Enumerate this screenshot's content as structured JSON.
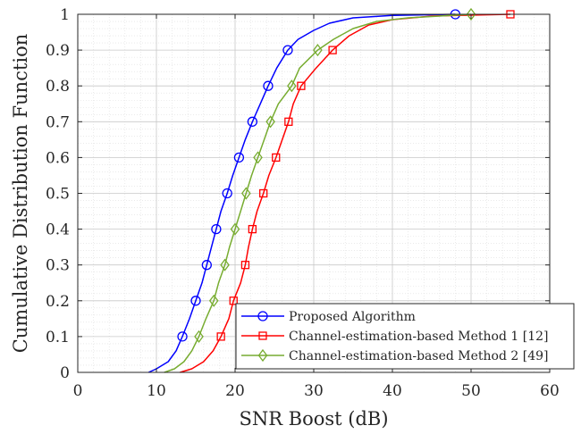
{
  "chart_data": {
    "type": "line",
    "title": "",
    "xlabel": "SNR Boost (dB)",
    "ylabel": "Cumulative Distribution Function",
    "xlim": [
      0,
      60
    ],
    "ylim": [
      0,
      1
    ],
    "xticks": [
      0,
      10,
      20,
      30,
      40,
      50,
      60
    ],
    "yticks": [
      0,
      0.1,
      0.2,
      0.3,
      0.4,
      0.5,
      0.6,
      0.7,
      0.8,
      0.9,
      1
    ],
    "xtick_labels": [
      "0",
      "10",
      "20",
      "30",
      "40",
      "50",
      "60"
    ],
    "ytick_labels": [
      "0",
      "0.1",
      "0.2",
      "0.3",
      "0.4",
      "0.5",
      "0.6",
      "0.7",
      "0.8",
      "0.9",
      "1"
    ],
    "grid": true,
    "minor_grid": true,
    "legend_position": "bottom-right",
    "series": [
      {
        "name": "Proposed Algorithm",
        "color": "#0000ff",
        "marker": "circle",
        "points": [
          [
            9,
            0
          ],
          [
            10,
            0.01
          ],
          [
            11.5,
            0.03
          ],
          [
            12.5,
            0.06
          ],
          [
            13.3,
            0.1
          ],
          [
            14.2,
            0.15
          ],
          [
            15,
            0.2
          ],
          [
            15.8,
            0.25
          ],
          [
            16.4,
            0.3
          ],
          [
            17,
            0.35
          ],
          [
            17.6,
            0.4
          ],
          [
            18.2,
            0.45
          ],
          [
            19,
            0.5
          ],
          [
            19.7,
            0.55
          ],
          [
            20.5,
            0.6
          ],
          [
            21.3,
            0.65
          ],
          [
            22.2,
            0.7
          ],
          [
            23.2,
            0.75
          ],
          [
            24.2,
            0.8
          ],
          [
            25.3,
            0.85
          ],
          [
            26.7,
            0.9
          ],
          [
            28,
            0.93
          ],
          [
            30,
            0.955
          ],
          [
            32,
            0.975
          ],
          [
            35,
            0.99
          ],
          [
            40,
            0.997
          ],
          [
            48,
            1
          ]
        ],
        "marker_points": [
          [
            13.3,
            0.1
          ],
          [
            15,
            0.2
          ],
          [
            16.4,
            0.3
          ],
          [
            17.6,
            0.4
          ],
          [
            19,
            0.5
          ],
          [
            20.5,
            0.6
          ],
          [
            22.2,
            0.7
          ],
          [
            24.2,
            0.8
          ],
          [
            26.7,
            0.9
          ],
          [
            48,
            1
          ]
        ]
      },
      {
        "name": "Channel-estimation-based Method 1 [12]",
        "color": "#ff0000",
        "marker": "square",
        "points": [
          [
            13,
            0
          ],
          [
            14.5,
            0.01
          ],
          [
            16,
            0.03
          ],
          [
            17.2,
            0.06
          ],
          [
            18.2,
            0.1
          ],
          [
            19.2,
            0.15
          ],
          [
            19.8,
            0.2
          ],
          [
            20.7,
            0.25
          ],
          [
            21.3,
            0.3
          ],
          [
            21.7,
            0.35
          ],
          [
            22.2,
            0.4
          ],
          [
            22.8,
            0.45
          ],
          [
            23.6,
            0.5
          ],
          [
            24.3,
            0.55
          ],
          [
            25.2,
            0.6
          ],
          [
            26,
            0.65
          ],
          [
            26.8,
            0.7
          ],
          [
            27.4,
            0.75
          ],
          [
            28.4,
            0.8
          ],
          [
            30.3,
            0.85
          ],
          [
            32.4,
            0.9
          ],
          [
            34.5,
            0.94
          ],
          [
            37,
            0.97
          ],
          [
            40,
            0.985
          ],
          [
            45,
            0.995
          ],
          [
            55,
            1
          ]
        ],
        "marker_points": [
          [
            18.2,
            0.1
          ],
          [
            19.8,
            0.2
          ],
          [
            21.3,
            0.3
          ],
          [
            22.2,
            0.4
          ],
          [
            23.6,
            0.5
          ],
          [
            25.2,
            0.6
          ],
          [
            26.8,
            0.7
          ],
          [
            28.4,
            0.8
          ],
          [
            32.4,
            0.9
          ],
          [
            55,
            1
          ]
        ]
      },
      {
        "name": "Channel-estimation-based Method 2 [49]",
        "color": "#77ac30",
        "marker": "diamond",
        "points": [
          [
            11,
            0
          ],
          [
            12.3,
            0.01
          ],
          [
            13.5,
            0.03
          ],
          [
            14.5,
            0.06
          ],
          [
            15.4,
            0.1
          ],
          [
            16.3,
            0.15
          ],
          [
            17.3,
            0.2
          ],
          [
            17.9,
            0.25
          ],
          [
            18.7,
            0.3
          ],
          [
            19.3,
            0.35
          ],
          [
            20,
            0.4
          ],
          [
            20.7,
            0.45
          ],
          [
            21.4,
            0.5
          ],
          [
            22.1,
            0.55
          ],
          [
            22.9,
            0.6
          ],
          [
            23.7,
            0.65
          ],
          [
            24.5,
            0.7
          ],
          [
            25.5,
            0.75
          ],
          [
            27.2,
            0.8
          ],
          [
            28.2,
            0.85
          ],
          [
            30.5,
            0.9
          ],
          [
            32.5,
            0.93
          ],
          [
            35,
            0.96
          ],
          [
            38,
            0.98
          ],
          [
            42,
            0.99
          ],
          [
            50,
            1
          ]
        ],
        "marker_points": [
          [
            15.4,
            0.1
          ],
          [
            17.3,
            0.2
          ],
          [
            18.7,
            0.3
          ],
          [
            20,
            0.4
          ],
          [
            21.4,
            0.5
          ],
          [
            22.9,
            0.6
          ],
          [
            24.5,
            0.7
          ],
          [
            27.2,
            0.8
          ],
          [
            30.5,
            0.9
          ],
          [
            50,
            1
          ]
        ]
      }
    ]
  }
}
